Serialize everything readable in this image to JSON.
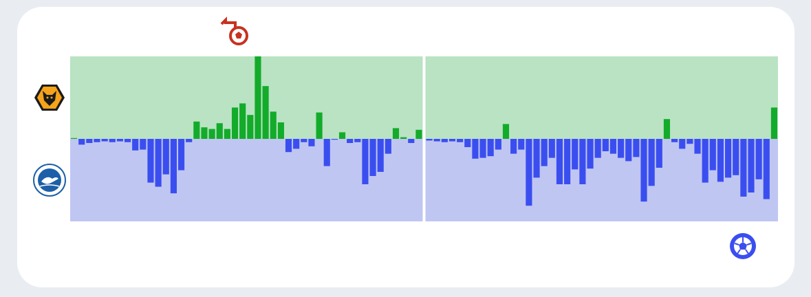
{
  "chart_data": {
    "type": "momentum",
    "ylim": [
      -100,
      100
    ],
    "positive_color": "#13ab2a",
    "negative_color": "#3a4ef0",
    "positive_area_color": "#b9e3c3",
    "negative_area_color": "#c0c6f2",
    "series": [
      {
        "values": [
          1,
          -7,
          -5,
          -4,
          -3,
          -4,
          -3,
          -4,
          -14,
          -13,
          -53,
          -58,
          -43,
          -66,
          -38,
          -4,
          21,
          14,
          12,
          19,
          12,
          38,
          43,
          29,
          100,
          64,
          33,
          20,
          -16,
          -12,
          -4,
          -9,
          32,
          -33,
          -1,
          8,
          -5,
          -4,
          -55,
          -45,
          -40,
          -18,
          13,
          2,
          -5,
          11
        ]
      },
      {
        "values": [
          -2,
          -3,
          -4,
          -3,
          -4,
          -10,
          -24,
          -23,
          -21,
          -13,
          18,
          -18,
          -13,
          -81,
          -47,
          -33,
          -23,
          -55,
          -55,
          -37,
          -55,
          -36,
          -23,
          -15,
          -18,
          -23,
          -27,
          -22,
          -76,
          -57,
          -35,
          24,
          -4,
          -12,
          -6,
          -18,
          -53,
          -38,
          -52,
          -47,
          -44,
          -70,
          -65,
          -49,
          -73,
          38
        ]
      }
    ]
  }
}
